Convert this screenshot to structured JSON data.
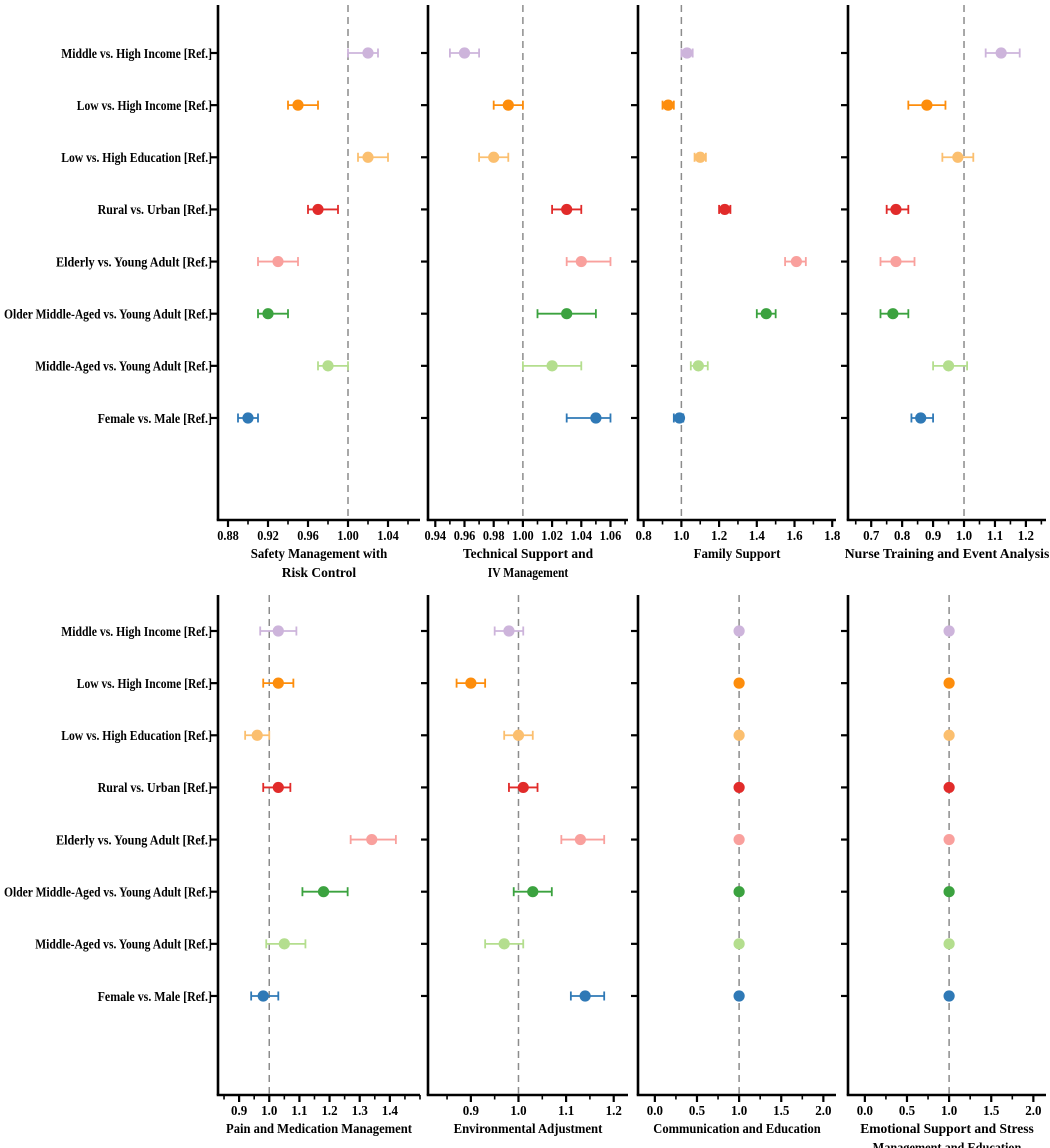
{
  "figure": {
    "background": "#ffffff",
    "reference_line_value": 1.0,
    "reference_line_color": "#8c8c8c",
    "axis_color": "#000000"
  },
  "categories": [
    "Middle vs. High Income [Ref.]",
    "Low vs. High Income [Ref.]",
    "Low vs. High Education [Ref.]",
    "Rural vs. Urban [Ref.]",
    "Elderly vs. Young Adult [Ref.]",
    "Older Middle-Aged vs. Young Adult [Ref.]",
    "Middle-Aged vs. Young Adult [Ref.]",
    "Female vs. Male [Ref.]"
  ],
  "palette": [
    "#CDB4DB",
    "#FD8D0C",
    "#FBBF6F",
    "#E12B2A",
    "#F9A09D",
    "#3BA23F",
    "#B4DE8E",
    "#2F79B6"
  ],
  "chart_data": [
    {
      "type": "scatter",
      "id": "safety-management",
      "title_lines": [
        "Safety Management with",
        "Risk Control"
      ],
      "xlim": [
        0.87,
        1.072
      ],
      "x_ticks": [
        0.88,
        0.92,
        0.96,
        1.0,
        1.04
      ],
      "minor_step": 0.02,
      "tick_decimals": 2,
      "ref_line": 1.0,
      "points": [
        {
          "group": "Middle vs. High Income [Ref.]",
          "est": 1.02,
          "ci": [
            1.0,
            1.03
          ]
        },
        {
          "group": "Low vs. High Income [Ref.]",
          "est": 0.95,
          "ci": [
            0.94,
            0.97
          ]
        },
        {
          "group": "Low vs. High Education [Ref.]",
          "est": 1.02,
          "ci": [
            1.01,
            1.04
          ]
        },
        {
          "group": "Rural vs. Urban [Ref.]",
          "est": 0.97,
          "ci": [
            0.96,
            0.99
          ]
        },
        {
          "group": "Elderly vs. Young Adult [Ref.]",
          "est": 0.93,
          "ci": [
            0.91,
            0.95
          ]
        },
        {
          "group": "Older Middle-Aged vs. Young Adult [Ref.]",
          "est": 0.92,
          "ci": [
            0.91,
            0.94
          ]
        },
        {
          "group": "Middle-Aged vs. Young Adult [Ref.]",
          "est": 0.98,
          "ci": [
            0.97,
            1.0
          ]
        },
        {
          "group": "Female vs. Male [Ref.]",
          "est": 0.9,
          "ci": [
            0.89,
            0.91
          ]
        }
      ]
    },
    {
      "type": "scatter",
      "id": "technical-support",
      "title_lines": [
        "Technical Support and",
        "IV Management"
      ],
      "xlim": [
        0.935,
        1.072
      ],
      "x_ticks": [
        0.94,
        0.96,
        0.98,
        1.0,
        1.02,
        1.04,
        1.06
      ],
      "minor_step": 0.01,
      "tick_decimals": 2,
      "ref_line": 1.0,
      "points": [
        {
          "group": "Middle vs. High Income [Ref.]",
          "est": 0.96,
          "ci": [
            0.95,
            0.97
          ]
        },
        {
          "group": "Low vs. High Income [Ref.]",
          "est": 0.99,
          "ci": [
            0.98,
            1.0
          ]
        },
        {
          "group": "Low vs. High Education [Ref.]",
          "est": 0.98,
          "ci": [
            0.97,
            0.99
          ]
        },
        {
          "group": "Rural vs. Urban [Ref.]",
          "est": 1.03,
          "ci": [
            1.02,
            1.04
          ]
        },
        {
          "group": "Elderly vs. Young Adult [Ref.]",
          "est": 1.04,
          "ci": [
            1.03,
            1.06
          ]
        },
        {
          "group": "Older Middle-Aged vs. Young Adult [Ref.]",
          "est": 1.03,
          "ci": [
            1.01,
            1.05
          ]
        },
        {
          "group": "Middle-Aged vs. Young Adult [Ref.]",
          "est": 1.02,
          "ci": [
            1.0,
            1.04
          ]
        },
        {
          "group": "Female vs. Male [Ref.]",
          "est": 1.05,
          "ci": [
            1.03,
            1.06
          ]
        }
      ]
    },
    {
      "type": "scatter",
      "id": "family-support",
      "title_lines": [
        "Family Support"
      ],
      "xlim": [
        0.77,
        1.82
      ],
      "x_ticks": [
        0.8,
        1.0,
        1.2,
        1.4,
        1.6,
        1.8
      ],
      "minor_step": 0.1,
      "tick_decimals": 1,
      "ref_line": 1.0,
      "points": [
        {
          "group": "Middle vs. High Income [Ref.]",
          "est": 1.03,
          "ci": [
            1.0,
            1.06
          ]
        },
        {
          "group": "Low vs. High Income [Ref.]",
          "est": 0.93,
          "ci": [
            0.9,
            0.96
          ]
        },
        {
          "group": "Low vs. High Education [Ref.]",
          "est": 1.1,
          "ci": [
            1.07,
            1.13
          ]
        },
        {
          "group": "Rural vs. Urban [Ref.]",
          "est": 1.23,
          "ci": [
            1.2,
            1.26
          ]
        },
        {
          "group": "Elderly vs. Young Adult [Ref.]",
          "est": 1.61,
          "ci": [
            1.55,
            1.66
          ]
        },
        {
          "group": "Older Middle-Aged vs. Young Adult [Ref.]",
          "est": 1.45,
          "ci": [
            1.4,
            1.5
          ]
        },
        {
          "group": "Middle-Aged vs. Young Adult [Ref.]",
          "est": 1.09,
          "ci": [
            1.05,
            1.14
          ]
        },
        {
          "group": "Female vs. Male [Ref.]",
          "est": 0.99,
          "ci": [
            0.96,
            1.01
          ]
        }
      ]
    },
    {
      "type": "scatter",
      "id": "nurse-training",
      "title_lines": [
        "Nurse Training and Event Analysis"
      ],
      "xlim": [
        0.625,
        1.265
      ],
      "x_ticks": [
        0.7,
        0.8,
        0.9,
        1.0,
        1.1,
        1.2
      ],
      "minor_step": 0.05,
      "tick_decimals": 1,
      "ref_line": 1.0,
      "points": [
        {
          "group": "Middle vs. High Income [Ref.]",
          "est": 1.12,
          "ci": [
            1.07,
            1.18
          ]
        },
        {
          "group": "Low vs. High Income [Ref.]",
          "est": 0.88,
          "ci": [
            0.82,
            0.94
          ]
        },
        {
          "group": "Low vs. High Education [Ref.]",
          "est": 0.98,
          "ci": [
            0.93,
            1.03
          ]
        },
        {
          "group": "Rural vs. Urban [Ref.]",
          "est": 0.78,
          "ci": [
            0.75,
            0.82
          ]
        },
        {
          "group": "Elderly vs. Young Adult [Ref.]",
          "est": 0.78,
          "ci": [
            0.73,
            0.84
          ]
        },
        {
          "group": "Older Middle-Aged vs. Young Adult [Ref.]",
          "est": 0.77,
          "ci": [
            0.73,
            0.82
          ]
        },
        {
          "group": "Middle-Aged vs. Young Adult [Ref.]",
          "est": 0.95,
          "ci": [
            0.9,
            1.01
          ]
        },
        {
          "group": "Female vs. Male [Ref.]",
          "est": 0.86,
          "ci": [
            0.83,
            0.9
          ]
        }
      ]
    },
    {
      "type": "scatter",
      "id": "pain-medication",
      "title_lines": [
        "Pain and Medication Management"
      ],
      "xlim": [
        0.83,
        1.5
      ],
      "x_ticks": [
        0.9,
        1.0,
        1.1,
        1.2,
        1.3,
        1.4
      ],
      "minor_step": 0.05,
      "tick_decimals": 1,
      "ref_line": 1.0,
      "points": [
        {
          "group": "Middle vs. High Income [Ref.]",
          "est": 1.03,
          "ci": [
            0.97,
            1.09
          ]
        },
        {
          "group": "Low vs. High Income [Ref.]",
          "est": 1.03,
          "ci": [
            0.98,
            1.08
          ]
        },
        {
          "group": "Low vs. High Education [Ref.]",
          "est": 0.96,
          "ci": [
            0.92,
            1.0
          ]
        },
        {
          "group": "Rural vs. Urban [Ref.]",
          "est": 1.03,
          "ci": [
            0.98,
            1.07
          ]
        },
        {
          "group": "Elderly vs. Young Adult [Ref.]",
          "est": 1.34,
          "ci": [
            1.27,
            1.42
          ]
        },
        {
          "group": "Older Middle-Aged vs. Young Adult [Ref.]",
          "est": 1.18,
          "ci": [
            1.11,
            1.26
          ]
        },
        {
          "group": "Middle-Aged vs. Young Adult [Ref.]",
          "est": 1.05,
          "ci": [
            0.99,
            1.12
          ]
        },
        {
          "group": "Female vs. Male [Ref.]",
          "est": 0.98,
          "ci": [
            0.94,
            1.03
          ]
        }
      ]
    },
    {
      "type": "scatter",
      "id": "environmental-adjustment",
      "title_lines": [
        "Environmental Adjustment"
      ],
      "xlim": [
        0.81,
        1.23
      ],
      "x_ticks": [
        0.9,
        1.0,
        1.1,
        1.2
      ],
      "minor_step": 0.05,
      "tick_decimals": 1,
      "ref_line": 1.0,
      "points": [
        {
          "group": "Middle vs. High Income [Ref.]",
          "est": 0.98,
          "ci": [
            0.95,
            1.01
          ]
        },
        {
          "group": "Low vs. High Income [Ref.]",
          "est": 0.9,
          "ci": [
            0.87,
            0.93
          ]
        },
        {
          "group": "Low vs. High Education [Ref.]",
          "est": 1.0,
          "ci": [
            0.97,
            1.03
          ]
        },
        {
          "group": "Rural vs. Urban [Ref.]",
          "est": 1.01,
          "ci": [
            0.98,
            1.04
          ]
        },
        {
          "group": "Elderly vs. Young Adult [Ref.]",
          "est": 1.13,
          "ci": [
            1.09,
            1.18
          ]
        },
        {
          "group": "Older Middle-Aged vs. Young Adult [Ref.]",
          "est": 1.03,
          "ci": [
            0.99,
            1.07
          ]
        },
        {
          "group": "Middle-Aged vs. Young Adult [Ref.]",
          "est": 0.97,
          "ci": [
            0.93,
            1.01
          ]
        },
        {
          "group": "Female vs. Male [Ref.]",
          "est": 1.14,
          "ci": [
            1.11,
            1.18
          ]
        }
      ]
    },
    {
      "type": "scatter",
      "id": "communication-education",
      "title_lines": [
        "Communication and Education"
      ],
      "xlim": [
        -0.2,
        2.15
      ],
      "x_ticks": [
        0.0,
        0.5,
        1.0,
        1.5,
        2.0
      ],
      "minor_step": 0.25,
      "tick_decimals": 1,
      "ref_line": 1.0,
      "points": [
        {
          "group": "Middle vs. High Income [Ref.]",
          "est": 1.0,
          "ci": [
            0.99,
            1.01
          ]
        },
        {
          "group": "Low vs. High Income [Ref.]",
          "est": 1.0,
          "ci": [
            0.99,
            1.01
          ]
        },
        {
          "group": "Low vs. High Education [Ref.]",
          "est": 1.0,
          "ci": [
            0.99,
            1.01
          ]
        },
        {
          "group": "Rural vs. Urban [Ref.]",
          "est": 1.0,
          "ci": [
            0.99,
            1.01
          ]
        },
        {
          "group": "Elderly vs. Young Adult [Ref.]",
          "est": 1.0,
          "ci": [
            0.99,
            1.01
          ]
        },
        {
          "group": "Older Middle-Aged vs. Young Adult [Ref.]",
          "est": 1.0,
          "ci": [
            0.99,
            1.01
          ]
        },
        {
          "group": "Middle-Aged vs. Young Adult [Ref.]",
          "est": 1.0,
          "ci": [
            0.99,
            1.01
          ]
        },
        {
          "group": "Female vs. Male [Ref.]",
          "est": 1.0,
          "ci": [
            0.99,
            1.01
          ]
        }
      ]
    },
    {
      "type": "scatter",
      "id": "emotional-support",
      "title_lines": [
        "Emotional Support and Stress",
        "Management and Education"
      ],
      "xlim": [
        -0.2,
        2.15
      ],
      "x_ticks": [
        0.0,
        0.5,
        1.0,
        1.5,
        2.0
      ],
      "minor_step": 0.25,
      "tick_decimals": 1,
      "ref_line": 1.0,
      "points": [
        {
          "group": "Middle vs. High Income [Ref.]",
          "est": 1.0,
          "ci": [
            0.99,
            1.01
          ]
        },
        {
          "group": "Low vs. High Income [Ref.]",
          "est": 1.0,
          "ci": [
            0.99,
            1.01
          ]
        },
        {
          "group": "Low vs. High Education [Ref.]",
          "est": 1.0,
          "ci": [
            0.99,
            1.01
          ]
        },
        {
          "group": "Rural vs. Urban [Ref.]",
          "est": 1.0,
          "ci": [
            0.99,
            1.01
          ]
        },
        {
          "group": "Elderly vs. Young Adult [Ref.]",
          "est": 1.0,
          "ci": [
            0.99,
            1.01
          ]
        },
        {
          "group": "Older Middle-Aged vs. Young Adult [Ref.]",
          "est": 1.0,
          "ci": [
            0.99,
            1.01
          ]
        },
        {
          "group": "Middle-Aged vs. Young Adult [Ref.]",
          "est": 1.0,
          "ci": [
            0.99,
            1.01
          ]
        },
        {
          "group": "Female vs. Male [Ref.]",
          "est": 1.0,
          "ci": [
            0.99,
            1.01
          ]
        }
      ]
    }
  ]
}
